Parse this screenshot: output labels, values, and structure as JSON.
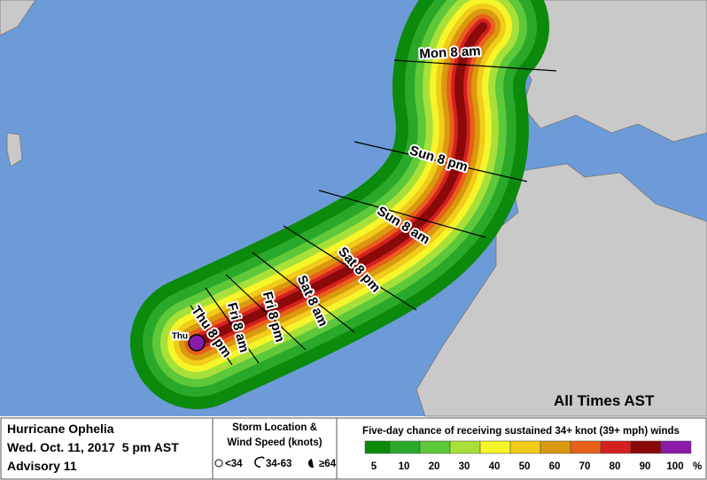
{
  "map": {
    "time_labels": [
      "Mon 8 am",
      "Sun 8 pm",
      "Sun 8 am",
      "Sat 8 pm",
      "Sat 8 am",
      "Fri 8 pm",
      "Fri 8 am",
      "Thu 8 pm",
      "Thu"
    ],
    "note": "All Times AST"
  },
  "legend": {
    "storm_name": "Hurricane Ophelia",
    "date": "Wed. Oct. 11, 2017  5 pm AST",
    "advisory": "Advisory 11",
    "symbol_title": [
      "Storm Location &",
      "Wind Speed (knots)"
    ],
    "symbols": [
      "<34",
      "34-63",
      "≥64"
    ],
    "scale_title": "Five-day chance of receiving sustained 34+ knot (39+ mph) winds",
    "scale_labels": [
      "5",
      "10",
      "20",
      "30",
      "40",
      "50",
      "60",
      "70",
      "80",
      "90",
      "100"
    ],
    "scale_unit": "%",
    "scale_colors": [
      "#0b8a0b",
      "#2aa82a",
      "#5cc83a",
      "#a8e03a",
      "#f5f52a",
      "#f2cc1a",
      "#d99a10",
      "#e8601a",
      "#d42020",
      "#8a0a0a",
      "#8a1aa8"
    ]
  }
}
